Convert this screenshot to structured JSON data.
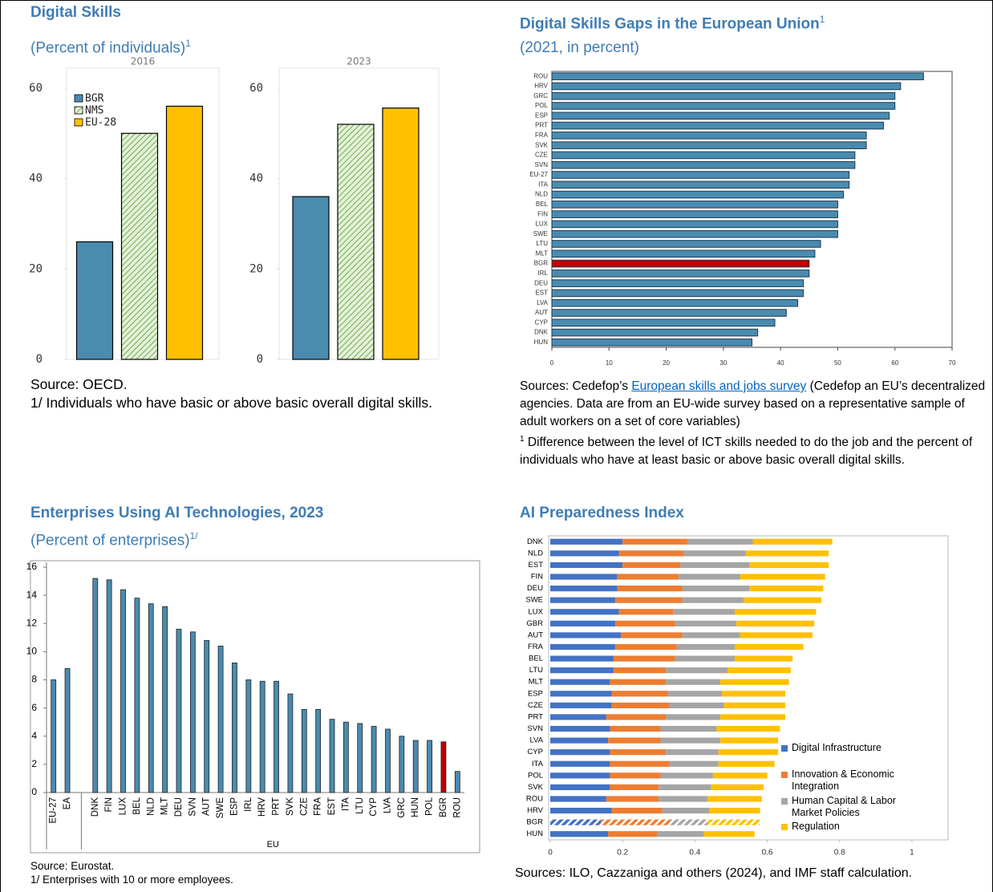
{
  "panels": [
    {
      "title": "Digital Skills",
      "subtitle": "(Percent of individuals)",
      "subtitle_sup": "1",
      "source": "Source: OECD.",
      "note": "1/ Individuals who have basic or above basic overall digital skills."
    },
    {
      "title": "Digital Skills Gaps in the European Union",
      "title_sup": "1",
      "subtitle": "(2021, in percent)",
      "source_before": "Sources: Cedefop’s",
      "source_link": "European skills and jobs survey",
      "source_after": "(Cedefop an EU’s decentralized agencies. Data are from an EU-wide survey based on a representative sample of adult workers on a set of core variables)",
      "note_sup": "1",
      "note": "Difference between the level of ICT skills needed to do the job and the percent of individuals who have at least basic or above basic overall digital skills."
    },
    {
      "title": "Enterprises Using AI Technologies, 2023",
      "subtitle": "(Percent of enterprises)",
      "subtitle_sup": "1/",
      "source": "Source: Eurostat.",
      "note": "1/ Enterprises with 10 or more employees."
    },
    {
      "title": "AI Preparedness Index",
      "source": "Sources: ILO, Cazzaniga and others (2024), and IMF staff calculation."
    }
  ],
  "chart_data": [
    {
      "type": "bar",
      "categories": [
        "2016",
        "2023"
      ],
      "series": [
        {
          "name": "BGR",
          "color": "#4a8bb0",
          "values": [
            26,
            36
          ]
        },
        {
          "name": "NMS",
          "color": "#70ad47",
          "pattern": "hatch",
          "values": [
            50,
            52
          ]
        },
        {
          "name": "EU-28",
          "color": "#ffc000",
          "values": [
            56,
            55.6
          ]
        }
      ],
      "ylim": [
        0,
        63
      ],
      "yticks": [
        0,
        20,
        40,
        60
      ],
      "legend": "upper left"
    },
    {
      "type": "bar",
      "orientation": "horizontal",
      "categories": [
        "ROU",
        "HRV",
        "GRC",
        "POL",
        "ESP",
        "PRT",
        "FRA",
        "SVK",
        "CZE",
        "SVN",
        "EU-27",
        "ITA",
        "NLD",
        "BEL",
        "FIN",
        "LUX",
        "SWE",
        "LTU",
        "MLT",
        "BGR",
        "IRL",
        "DEU",
        "EST",
        "LVA",
        "AUT",
        "CYP",
        "DNK",
        "HUN"
      ],
      "values": [
        65,
        61,
        60,
        60,
        59,
        58,
        55,
        55,
        53,
        53,
        52,
        52,
        51,
        50,
        50,
        50,
        50,
        47,
        46,
        45,
        45,
        44,
        44,
        43,
        41,
        39,
        36,
        35
      ],
      "color": "#4a8bb0",
      "highlight": "BGR",
      "highlight_color": "#c00000",
      "xlim": [
        0,
        70
      ],
      "xticks": [
        0,
        10,
        20,
        30,
        40,
        50,
        60,
        70
      ]
    },
    {
      "type": "bar",
      "categories": [
        "EU-27",
        "EA",
        null,
        "DNK",
        "FIN",
        "LUX",
        "BEL",
        "NLD",
        "MLT",
        "DEU",
        "SVN",
        "AUT",
        "SWE",
        "ESP",
        "IRL",
        "HRV",
        "PRT",
        "SVK",
        "CZE",
        "FRA",
        "EST",
        "ITA",
        "LTU",
        "CYP",
        "LVA",
        "GRC",
        "HUN",
        "POL",
        "BGR",
        "ROU"
      ],
      "values": [
        8.0,
        8.8,
        null,
        15.2,
        15.1,
        14.4,
        13.8,
        13.4,
        13.2,
        11.6,
        11.4,
        10.8,
        10.4,
        9.2,
        8.0,
        7.9,
        7.9,
        7.0,
        5.9,
        5.9,
        5.2,
        5.0,
        4.9,
        4.7,
        4.5,
        4.0,
        3.7,
        3.7,
        3.6,
        1.5
      ],
      "group_label": "EU",
      "color": "#4a8bb0",
      "highlight": "BGR",
      "highlight_color": "#c00000",
      "ylim": [
        0,
        16
      ],
      "yticks": [
        0,
        2,
        4,
        6,
        8,
        10,
        12,
        14,
        16
      ]
    },
    {
      "type": "stacked_bar",
      "orientation": "horizontal",
      "categories": [
        "DNK",
        "NLD",
        "EST",
        "FIN",
        "DEU",
        "SWE",
        "LUX",
        "GBR",
        "AUT",
        "FRA",
        "BEL",
        "LTU",
        "MLT",
        "ESP",
        "CZE",
        "PRT",
        "SVN",
        "LVA",
        "CYP",
        "ITA",
        "POL",
        "SVK",
        "ROU",
        "HRV",
        "BGR",
        "HUN"
      ],
      "series": [
        {
          "name": "Digital Infrastructure",
          "color": "#4472c4",
          "values": [
            0.2,
            0.19,
            0.2,
            0.185,
            0.185,
            0.18,
            0.19,
            0.18,
            0.195,
            0.18,
            0.175,
            0.175,
            0.165,
            0.17,
            0.17,
            0.155,
            0.165,
            0.16,
            0.165,
            0.165,
            0.165,
            0.165,
            0.155,
            0.17,
            0.14,
            0.16
          ]
        },
        {
          "name": "Innovation & Economic Integration",
          "color": "#ed7d31",
          "values": [
            0.18,
            0.18,
            0.16,
            0.17,
            0.18,
            0.185,
            0.15,
            0.165,
            0.17,
            0.17,
            0.17,
            0.145,
            0.155,
            0.155,
            0.16,
            0.165,
            0.14,
            0.145,
            0.155,
            0.165,
            0.14,
            0.135,
            0.145,
            0.14,
            0.19,
            0.135
          ]
        },
        {
          "name": "Human Capital & Labor Market Policies",
          "color": "#a5a5a5",
          "values": [
            0.18,
            0.17,
            0.19,
            0.17,
            0.185,
            0.17,
            0.17,
            0.17,
            0.16,
            0.16,
            0.165,
            0.17,
            0.15,
            0.15,
            0.15,
            0.15,
            0.155,
            0.165,
            0.145,
            0.135,
            0.145,
            0.145,
            0.135,
            0.13,
            0.105,
            0.13
          ]
        },
        {
          "name": "Regulation",
          "color": "#ffc000",
          "values": [
            0.22,
            0.23,
            0.22,
            0.235,
            0.205,
            0.215,
            0.225,
            0.215,
            0.2,
            0.19,
            0.16,
            0.175,
            0.19,
            0.175,
            0.17,
            0.18,
            0.175,
            0.16,
            0.165,
            0.155,
            0.15,
            0.145,
            0.15,
            0.14,
            0.145,
            0.14
          ]
        }
      ],
      "hatched": "BGR",
      "xlim": [
        0,
        1.1
      ],
      "xticks": [
        0,
        0.2,
        0.4,
        0.6,
        0.8,
        1
      ],
      "legend": "lower right"
    }
  ]
}
